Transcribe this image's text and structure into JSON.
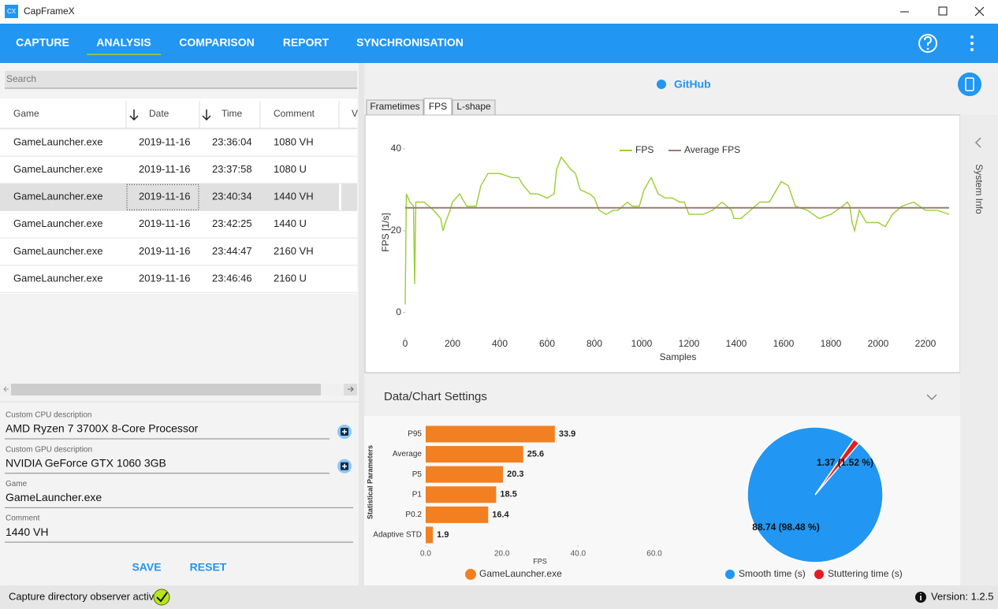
{
  "window": {
    "icon": "CX",
    "title": "CapFrameX"
  },
  "nav": {
    "items": [
      "CAPTURE",
      "ANALYSIS",
      "COMPARISON",
      "REPORT",
      "SYNCHRONISATION"
    ],
    "active": 1
  },
  "search": {
    "placeholder": "Search"
  },
  "table": {
    "columns": [
      "Game",
      "Date",
      "Time",
      "Comment",
      "V"
    ],
    "rows": [
      [
        "GameLauncher.exe",
        "2019-11-16",
        "23:36:04",
        "1080 VH"
      ],
      [
        "GameLauncher.exe",
        "2019-11-16",
        "23:37:58",
        "1080 U"
      ],
      [
        "GameLauncher.exe",
        "2019-11-16",
        "23:40:34",
        "1440 VH"
      ],
      [
        "GameLauncher.exe",
        "2019-11-16",
        "23:42:25",
        "1440 U"
      ],
      [
        "GameLauncher.exe",
        "2019-11-16",
        "23:44:47",
        "2160 VH"
      ],
      [
        "GameLauncher.exe",
        "2019-11-16",
        "23:46:46",
        "2160 U"
      ]
    ],
    "selected": 2
  },
  "form": {
    "fields": [
      {
        "label": "Custom CPU description",
        "value": "AMD Ryzen 7 3700X 8-Core Processor"
      },
      {
        "label": "Custom GPU description",
        "value": "NVIDIA GeForce GTX 1060 3GB"
      },
      {
        "label": "Game",
        "value": "GameLauncher.exe"
      },
      {
        "label": "Comment",
        "value": "1440 VH"
      }
    ]
  },
  "buttons": [
    "SAVE",
    "RESET"
  ],
  "github": "GitHub",
  "tabs": {
    "items": [
      "Frametimes",
      "FPS",
      "L-shape"
    ],
    "active": 1
  },
  "side": "System Info",
  "settings": {
    "title": "Data/Chart Settings"
  },
  "status": {
    "text": "Capture directory observer active:",
    "version": "Version: 1.2.5"
  },
  "chart_data": [
    {
      "type": "line",
      "xlabel": "Samples",
      "ylabel": "FPS [1/s]",
      "xlim": [
        0,
        2300
      ],
      "ylim": [
        -6,
        45
      ],
      "xticks": [
        0,
        200,
        400,
        600,
        800,
        1000,
        1200,
        1400,
        1600,
        1800,
        2000,
        2200
      ],
      "yticks": [
        0,
        20,
        40
      ],
      "grid": false,
      "legend": "top",
      "series": [
        {
          "name": "FPS",
          "color": "#9acd32",
          "x": [
            0,
            5,
            20,
            35,
            40,
            45,
            80,
            120,
            150,
            160,
            170,
            190,
            200,
            230,
            260,
            300,
            320,
            350,
            400,
            450,
            480,
            500,
            530,
            560,
            600,
            630,
            640,
            660,
            700,
            720,
            740,
            780,
            800,
            820,
            850,
            880,
            900,
            940,
            960,
            990,
            1010,
            1040,
            1070,
            1100,
            1130,
            1160,
            1180,
            1200,
            1260,
            1300,
            1340,
            1380,
            1390,
            1420,
            1460,
            1500,
            1540,
            1560,
            1590,
            1620,
            1650,
            1700,
            1750,
            1800,
            1850,
            1870,
            1880,
            1890,
            1900,
            1920,
            1950,
            2000,
            2030,
            2060,
            2100,
            2150,
            2200,
            2250,
            2300
          ],
          "values": [
            2,
            29,
            27,
            26,
            7,
            27,
            27,
            25,
            23,
            20,
            22,
            25,
            27,
            29,
            26,
            26,
            31,
            34,
            34,
            33,
            33,
            31,
            29,
            29,
            28,
            29,
            35,
            38,
            35,
            34,
            30,
            29,
            28,
            25,
            24,
            25,
            25,
            27,
            26,
            26,
            30,
            33,
            29,
            28,
            28,
            27,
            27,
            24,
            24,
            25,
            27,
            25,
            23,
            23,
            25,
            27,
            27,
            29,
            32,
            31,
            26,
            25,
            23,
            24,
            26,
            27,
            26,
            22,
            20,
            25,
            22,
            22,
            21,
            24,
            26,
            27,
            25,
            25,
            24
          ]
        },
        {
          "name": "Average FPS",
          "color": "#9b7b73",
          "x": [
            0,
            2300
          ],
          "values": [
            25.6,
            25.6
          ]
        }
      ]
    },
    {
      "type": "hbar",
      "xlabel": "FPS",
      "ylabel": "Statistical Parameters",
      "color": "#f28023",
      "categories": [
        "P95",
        "Average",
        "P5",
        "P1",
        "P0.2",
        "Adaptive STD"
      ],
      "values": [
        33.9,
        25.6,
        20.3,
        18.5,
        16.4,
        1.9
      ],
      "xlim": [
        0,
        60
      ],
      "xticks": [
        {
          "value": 0,
          "label": "0.0"
        },
        {
          "value": 20,
          "label": "20.0"
        },
        {
          "value": 40,
          "label": "40.0"
        },
        {
          "value": 60,
          "label": "60.0"
        }
      ],
      "legend": "GameLauncher.exe"
    },
    {
      "type": "pie",
      "categories": [
        "Smooth time (s)",
        "Stuttering time (s)"
      ],
      "values": [
        88.74,
        1.37
      ],
      "value_labels": [
        "88.74 (98.48 %)",
        "1.37 (1.52 %)"
      ],
      "colors": [
        "#2196f3",
        "#e51c23"
      ]
    }
  ]
}
